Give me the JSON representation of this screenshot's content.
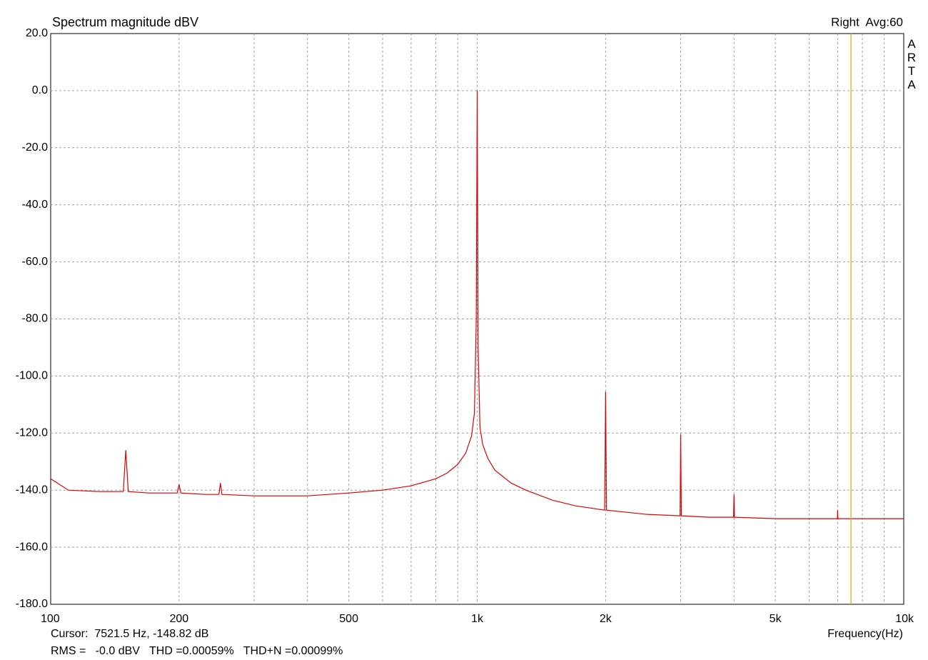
{
  "chart_data": {
    "type": "line",
    "title": "Spectrum magnitude dBV",
    "channel_label": "Right  Avg:60",
    "watermark": "ARTA",
    "cursor_label": "Cursor:  7521.5 Hz, -148.82 dB",
    "cursor_x": 7521.5,
    "cursor_color": "#c8b400",
    "xlabel": "Frequency(Hz)",
    "stats_label": "RMS =   -0.0 dBV   THD =0.00059%   THD+N =0.00099%",
    "stats_color": "#c00000",
    "xscale": "log",
    "grid": true,
    "xlim": [
      100,
      10000
    ],
    "xticks": [
      100,
      200,
      500,
      {
        "value": 1000,
        "label": "1k"
      },
      {
        "value": 2000,
        "label": "2k"
      },
      {
        "value": 5000,
        "label": "5k"
      },
      {
        "value": 10000,
        "label": "10k"
      }
    ],
    "xgrid_minor": [
      300,
      400,
      600,
      700,
      800,
      900,
      3000,
      4000,
      6000,
      7000,
      8000,
      9000
    ],
    "ylim": [
      -180,
      20
    ],
    "yticks": [
      {
        "value": 20,
        "label": "20.0"
      },
      {
        "value": 0,
        "label": "0.0"
      },
      {
        "value": -20,
        "label": "-20.0"
      },
      {
        "value": -40,
        "label": "-40.0"
      },
      {
        "value": -60,
        "label": "-60.0"
      },
      {
        "value": -80,
        "label": "-80.0"
      },
      {
        "value": -100,
        "label": "-100.0"
      },
      {
        "value": -120,
        "label": "-120.0"
      },
      {
        "value": -140,
        "label": "-140.0"
      },
      {
        "value": -160,
        "label": "-160.0"
      },
      {
        "value": -180,
        "label": "-180.0"
      }
    ],
    "series": [
      {
        "color": "#e00000",
        "x": [
          100,
          110,
          130,
          148,
          150,
          152,
          170,
          198,
          200,
          202,
          230,
          248,
          250,
          252,
          300,
          400,
          500,
          600,
          700,
          800,
          850,
          900,
          940,
          970,
          985,
          995,
          1000,
          1005,
          1015,
          1030,
          1060,
          1100,
          1200,
          1300,
          1500,
          1700,
          1990,
          2000,
          2010,
          2500,
          2990,
          3000,
          3010,
          3500,
          3990,
          4000,
          4010,
          5000,
          6000,
          6990,
          7000,
          7010,
          8000,
          10000
        ],
        "values": [
          -136,
          -140,
          -140.5,
          -140.5,
          -126,
          -140.5,
          -141,
          -141,
          -138,
          -141,
          -141.5,
          -141.5,
          -137.5,
          -141.5,
          -142,
          -142,
          -141,
          -140,
          -138.5,
          -136,
          -134,
          -131,
          -127,
          -121,
          -113,
          -80,
          0,
          -90,
          -118,
          -124,
          -129,
          -133,
          -137.5,
          -140,
          -143.5,
          -145.5,
          -147,
          -105.5,
          -147,
          -148.5,
          -149,
          -120.5,
          -149,
          -149.5,
          -149.5,
          -141.5,
          -149.5,
          -150,
          -150,
          -150,
          -147,
          -150,
          -150,
          -150
        ]
      }
    ]
  }
}
